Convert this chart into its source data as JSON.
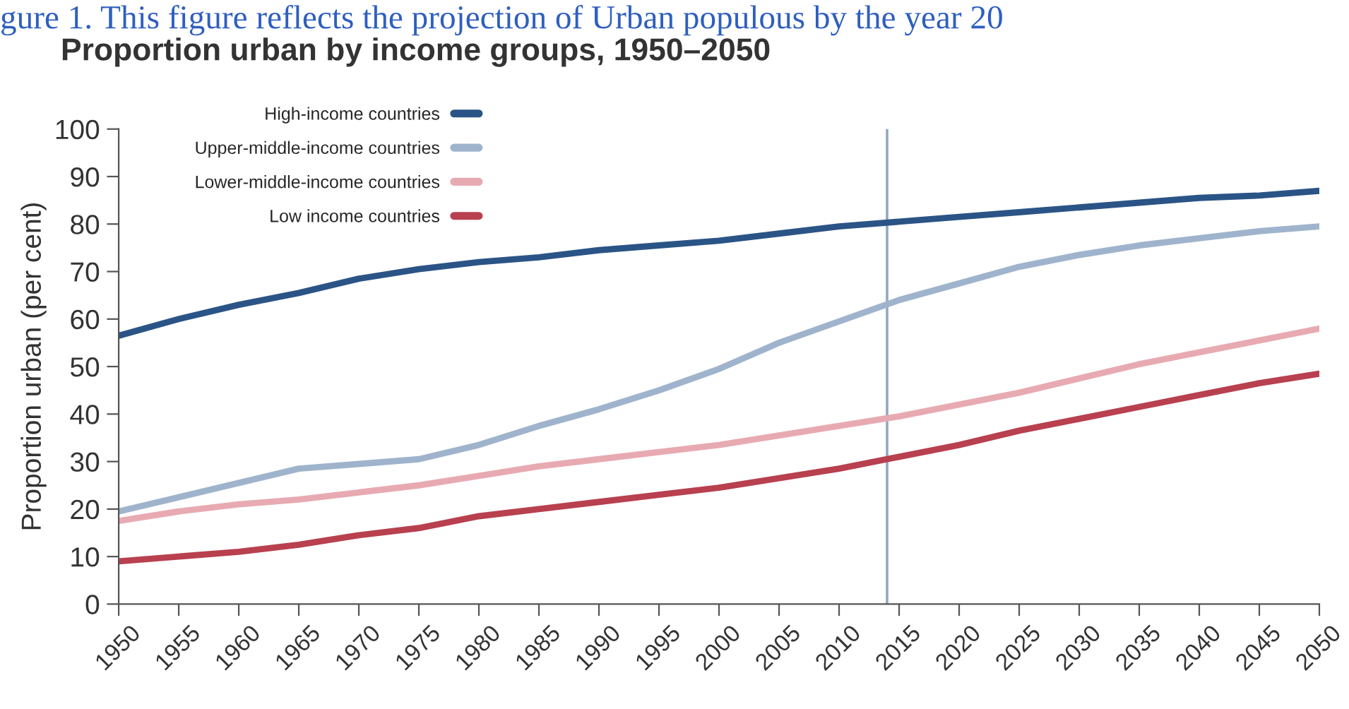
{
  "chart_data": {
    "type": "line",
    "title": "Proportion urban by income groups, 1950–2050",
    "ylabel": "Proportion urban (per cent)",
    "annotations": [
      "gure 1. This figure reflects the projection of Urban populous by the year 20"
    ],
    "x": [
      1950,
      1955,
      1960,
      1965,
      1970,
      1975,
      1980,
      1985,
      1990,
      1995,
      2000,
      2005,
      2010,
      2015,
      2020,
      2025,
      2030,
      2035,
      2040,
      2045,
      2050
    ],
    "series": [
      {
        "name": "High-income countries",
        "color": "#2b5486",
        "values": [
          56.5,
          60,
          63,
          65.5,
          68.5,
          70.5,
          72,
          73,
          74.5,
          75.5,
          76.5,
          78,
          79.5,
          80.5,
          81.5,
          82.5,
          83.5,
          84.5,
          85.5,
          86,
          87
        ]
      },
      {
        "name": "Upper-middle-income countries",
        "color": "#9fb4cc",
        "values": [
          19.5,
          22.5,
          25.5,
          28.5,
          29.5,
          30.5,
          33.5,
          37.5,
          41,
          45,
          49.5,
          55,
          59.5,
          64,
          67.5,
          71,
          73.5,
          75.5,
          77,
          78.5,
          79.5
        ]
      },
      {
        "name": "Lower-middle-income countries",
        "color": "#e8aab2",
        "values": [
          17.5,
          19.5,
          21,
          22,
          23.5,
          25,
          27,
          29,
          30.5,
          32,
          33.5,
          35.5,
          37.5,
          39.5,
          42,
          44.5,
          47.5,
          50.5,
          53,
          55.5,
          58
        ]
      },
      {
        "name": "Low income countries",
        "color": "#b8404f",
        "values": [
          9,
          10,
          11,
          12.5,
          14.5,
          16,
          18.5,
          20,
          21.5,
          23,
          24.5,
          26.5,
          28.5,
          31,
          33.5,
          36.5,
          39,
          41.5,
          44,
          46.5,
          48.5
        ]
      }
    ],
    "ref_lines": [
      {
        "axis": "x",
        "value": 2014,
        "color": "#8fa9c0"
      }
    ],
    "xlim": [
      1950,
      2050
    ],
    "xticks": [
      1950,
      1955,
      1960,
      1965,
      1970,
      1975,
      1980,
      1985,
      1990,
      1995,
      2000,
      2005,
      2010,
      2015,
      2020,
      2025,
      2030,
      2035,
      2040,
      2045,
      2050
    ],
    "ylim": [
      0,
      100
    ],
    "yticks": [
      0,
      10,
      20,
      30,
      40,
      50,
      60,
      70,
      80,
      90,
      100
    ],
    "grid": false,
    "legend": "top left",
    "marker": "none",
    "line_style": "solid"
  }
}
